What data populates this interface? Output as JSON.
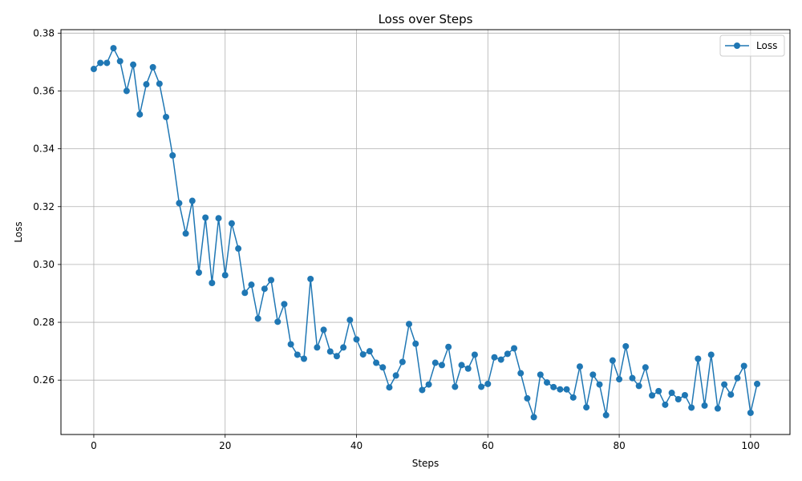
{
  "chart_data": {
    "type": "line",
    "title": "Loss over Steps",
    "xlabel": "Steps",
    "ylabel": "Loss",
    "xlim": [
      -5,
      106
    ],
    "ylim": [
      0.2412,
      0.3812
    ],
    "xticks": [
      0,
      20,
      40,
      60,
      80,
      100
    ],
    "yticks": [
      0.26,
      0.28,
      0.3,
      0.32,
      0.34,
      0.36,
      0.38
    ],
    "ytick_labels": [
      "0.26",
      "0.28",
      "0.30",
      "0.32",
      "0.34",
      "0.36",
      "0.38"
    ],
    "grid": true,
    "legend_position": "top-right",
    "series": [
      {
        "name": "Loss",
        "color": "#1f77b4",
        "marker": "circle",
        "x": [
          0,
          1,
          2,
          3,
          4,
          5,
          6,
          7,
          8,
          9,
          10,
          11,
          12,
          13,
          14,
          15,
          16,
          17,
          18,
          19,
          20,
          21,
          22,
          23,
          24,
          25,
          26,
          27,
          28,
          29,
          30,
          31,
          32,
          33,
          34,
          35,
          36,
          37,
          38,
          39,
          40,
          41,
          42,
          43,
          44,
          45,
          46,
          47,
          48,
          49,
          50,
          51,
          52,
          53,
          54,
          55,
          56,
          57,
          58,
          59,
          60,
          61,
          62,
          63,
          64,
          65,
          66,
          67,
          68,
          69,
          70,
          71,
          72,
          73,
          74,
          75,
          76,
          77,
          78,
          79,
          80,
          81,
          82,
          83,
          84,
          85,
          86,
          87,
          88,
          89,
          90,
          91,
          92,
          93,
          94,
          95,
          96,
          97,
          98,
          99,
          100,
          101
        ],
        "values": [
          0.3676,
          0.3697,
          0.3697,
          0.3748,
          0.3703,
          0.36,
          0.3691,
          0.3519,
          0.3623,
          0.3682,
          0.3625,
          0.351,
          0.3377,
          0.3212,
          0.3107,
          0.322,
          0.2972,
          0.3162,
          0.2936,
          0.316,
          0.2963,
          0.3142,
          0.3055,
          0.2902,
          0.293,
          0.2813,
          0.2916,
          0.2946,
          0.2802,
          0.2863,
          0.2724,
          0.2688,
          0.2674,
          0.295,
          0.2713,
          0.2774,
          0.2699,
          0.2683,
          0.2713,
          0.2808,
          0.2741,
          0.2689,
          0.27,
          0.266,
          0.2644,
          0.2575,
          0.2616,
          0.2663,
          0.2794,
          0.2726,
          0.2566,
          0.2585,
          0.266,
          0.2652,
          0.2715,
          0.2577,
          0.2652,
          0.264,
          0.2688,
          0.2577,
          0.2587,
          0.2679,
          0.2671,
          0.2691,
          0.271,
          0.2624,
          0.2537,
          0.2472,
          0.2619,
          0.2592,
          0.2576,
          0.2568,
          0.2568,
          0.254,
          0.2647,
          0.2506,
          0.2619,
          0.2585,
          0.2479,
          0.2668,
          0.2603,
          0.2717,
          0.2607,
          0.258,
          0.2644,
          0.2547,
          0.2562,
          0.2515,
          0.2556,
          0.2534,
          0.2548,
          0.2505,
          0.2674,
          0.2512,
          0.2688,
          0.2502,
          0.2585,
          0.255,
          0.2607,
          0.2649,
          0.2487,
          0.2587
        ]
      }
    ]
  }
}
